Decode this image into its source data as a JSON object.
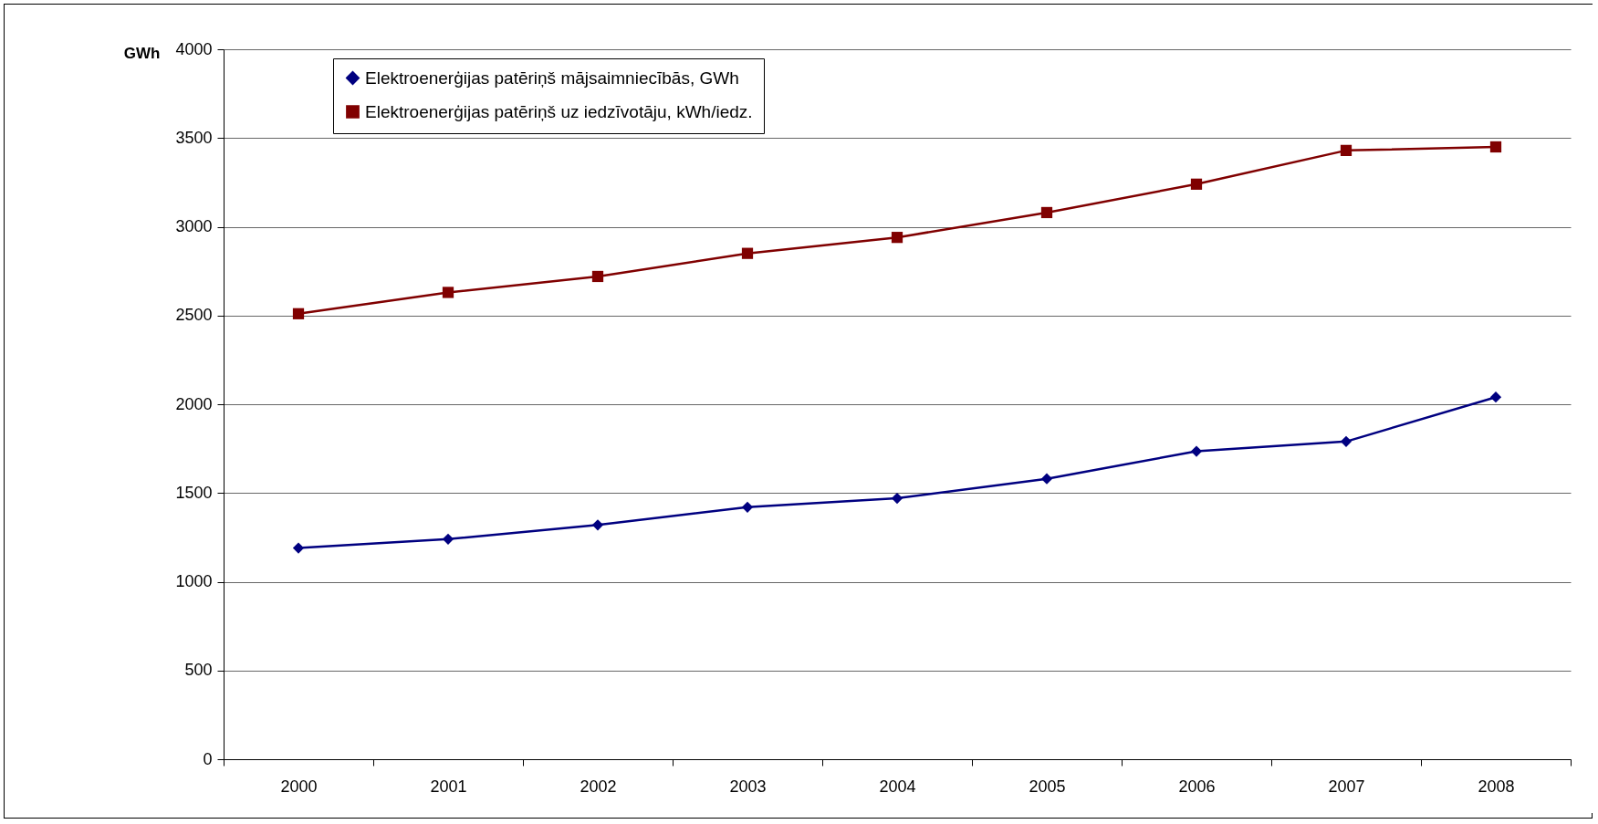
{
  "chart_data": {
    "type": "line",
    "ylabel": "GWh",
    "categories": [
      "2000",
      "2001",
      "2002",
      "2003",
      "2004",
      "2005",
      "2006",
      "2007",
      "2008"
    ],
    "series": [
      {
        "name": "Elektroenerģijas patēriņš mājsaimniecībās, GWh",
        "color": "#000080",
        "marker": "diamond",
        "values": [
          1190,
          1240,
          1320,
          1420,
          1470,
          1580,
          1735,
          1790,
          2040
        ]
      },
      {
        "name": "Elektroenerģijas patēriņš uz iedzīvotāju, kWh/iedz.",
        "color": "#800000",
        "marker": "square",
        "values": [
          2510,
          2630,
          2720,
          2850,
          2940,
          3080,
          3240,
          3430,
          3450
        ]
      }
    ],
    "ylim": [
      0,
      4000
    ],
    "yticks": [
      0,
      500,
      1000,
      1500,
      2000,
      2500,
      3000,
      3500,
      4000
    ],
    "grid": "y",
    "legend": "top left",
    "line_style": "solid"
  }
}
